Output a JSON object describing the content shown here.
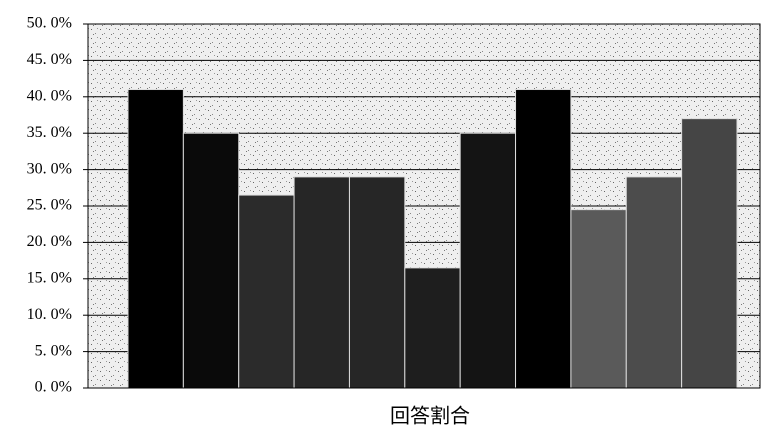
{
  "chart_data": {
    "type": "bar",
    "x_label": "回答割合",
    "categories": [
      null,
      null,
      null,
      null,
      null,
      null,
      null,
      null,
      null,
      null,
      null
    ],
    "values": [
      41,
      35,
      26.5,
      29,
      29,
      16.5,
      35,
      41,
      24.5,
      29,
      37
    ],
    "colors": [
      "#000000",
      "#0a0a0a",
      "#2b2b2b",
      "#262626",
      "#262626",
      "#1e1e1e",
      "#141414",
      "#000000",
      "#5a5a5a",
      "#4c4c4c",
      "#454545"
    ],
    "ylim": [
      0,
      50
    ],
    "yticks": [
      {
        "value": 0,
        "label": "0. 0%"
      },
      {
        "value": 5,
        "label": "5. 0%"
      },
      {
        "value": 10,
        "label": "10. 0%"
      },
      {
        "value": 15,
        "label": "15. 0%"
      },
      {
        "value": 20,
        "label": "20. 0%"
      },
      {
        "value": 25,
        "label": "25. 0%"
      },
      {
        "value": 30,
        "label": "30. 0%"
      },
      {
        "value": 35,
        "label": "35. 0%"
      },
      {
        "value": 40,
        "label": "40. 0%"
      },
      {
        "value": 45,
        "label": "45. 0%"
      },
      {
        "value": 50,
        "label": "50. 0%"
      }
    ],
    "grid": true
  }
}
